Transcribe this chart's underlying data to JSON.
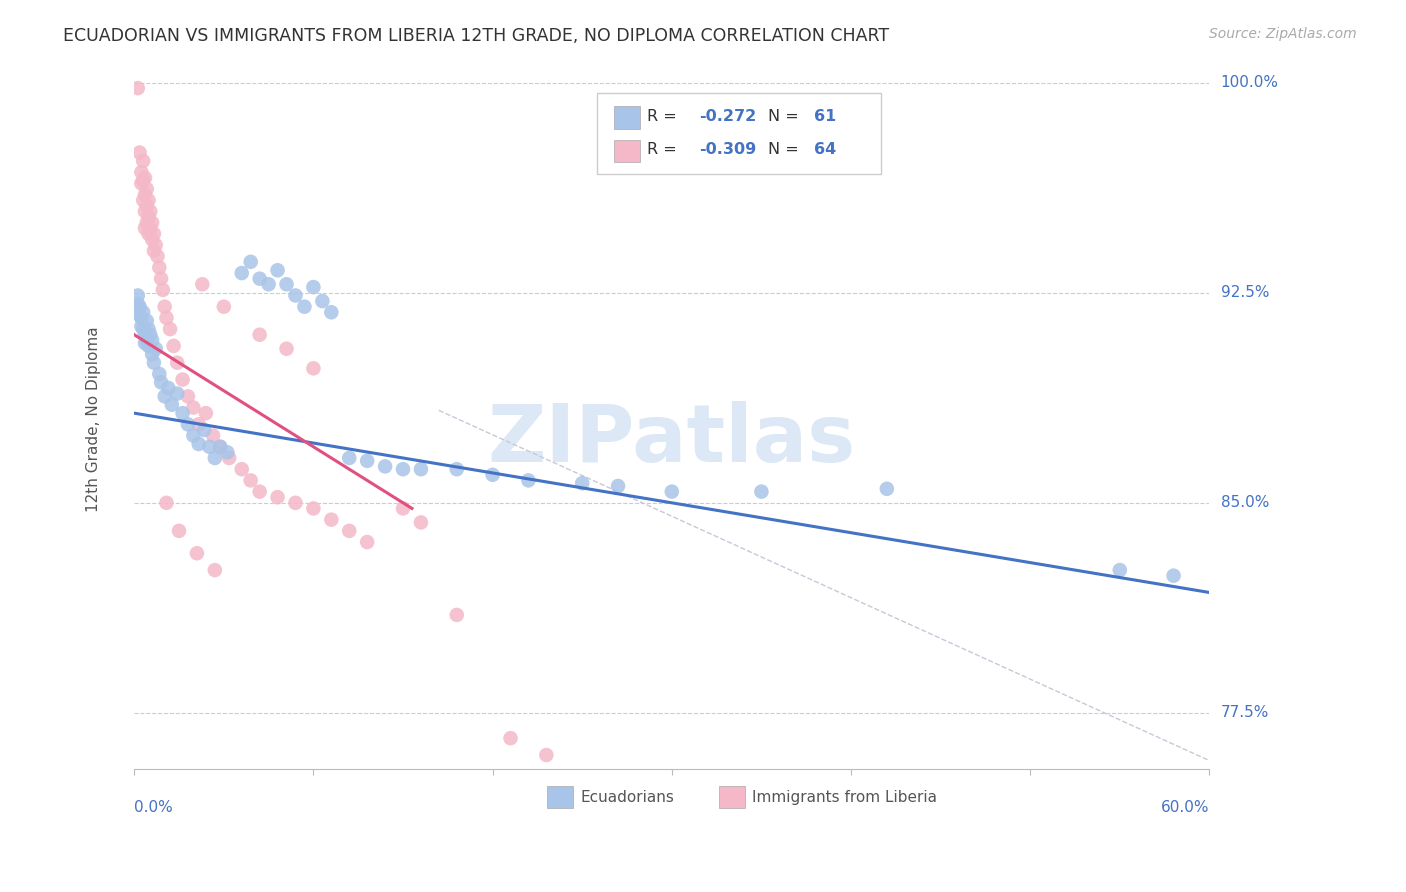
{
  "title": "ECUADORIAN VS IMMIGRANTS FROM LIBERIA 12TH GRADE, NO DIPLOMA CORRELATION CHART",
  "source": "Source: ZipAtlas.com",
  "ylabel": "12th Grade, No Diploma",
  "xmin": 0.0,
  "xmax": 0.6,
  "ymin": 0.755,
  "ymax": 1.005,
  "blue_color": "#a8c4e8",
  "pink_color": "#f4b8c8",
  "blue_line_color": "#4472c4",
  "pink_line_color": "#e05080",
  "blue_scatter": [
    [
      0.002,
      0.924
    ],
    [
      0.002,
      0.921
    ],
    [
      0.002,
      0.919
    ],
    [
      0.003,
      0.92
    ],
    [
      0.003,
      0.917
    ],
    [
      0.004,
      0.916
    ],
    [
      0.004,
      0.913
    ],
    [
      0.005,
      0.918
    ],
    [
      0.005,
      0.912
    ],
    [
      0.006,
      0.91
    ],
    [
      0.006,
      0.907
    ],
    [
      0.007,
      0.915
    ],
    [
      0.007,
      0.908
    ],
    [
      0.008,
      0.912
    ],
    [
      0.008,
      0.906
    ],
    [
      0.009,
      0.91
    ],
    [
      0.01,
      0.908
    ],
    [
      0.01,
      0.903
    ],
    [
      0.011,
      0.9
    ],
    [
      0.012,
      0.905
    ],
    [
      0.014,
      0.896
    ],
    [
      0.015,
      0.893
    ],
    [
      0.017,
      0.888
    ],
    [
      0.019,
      0.891
    ],
    [
      0.021,
      0.885
    ],
    [
      0.024,
      0.889
    ],
    [
      0.027,
      0.882
    ],
    [
      0.03,
      0.878
    ],
    [
      0.033,
      0.874
    ],
    [
      0.036,
      0.871
    ],
    [
      0.039,
      0.876
    ],
    [
      0.042,
      0.87
    ],
    [
      0.045,
      0.866
    ],
    [
      0.048,
      0.87
    ],
    [
      0.052,
      0.868
    ],
    [
      0.06,
      0.932
    ],
    [
      0.065,
      0.936
    ],
    [
      0.07,
      0.93
    ],
    [
      0.075,
      0.928
    ],
    [
      0.08,
      0.933
    ],
    [
      0.085,
      0.928
    ],
    [
      0.09,
      0.924
    ],
    [
      0.095,
      0.92
    ],
    [
      0.1,
      0.927
    ],
    [
      0.105,
      0.922
    ],
    [
      0.11,
      0.918
    ],
    [
      0.12,
      0.866
    ],
    [
      0.13,
      0.865
    ],
    [
      0.14,
      0.863
    ],
    [
      0.15,
      0.862
    ],
    [
      0.16,
      0.862
    ],
    [
      0.18,
      0.862
    ],
    [
      0.2,
      0.86
    ],
    [
      0.22,
      0.858
    ],
    [
      0.25,
      0.857
    ],
    [
      0.27,
      0.856
    ],
    [
      0.3,
      0.854
    ],
    [
      0.35,
      0.854
    ],
    [
      0.42,
      0.855
    ],
    [
      0.55,
      0.826
    ],
    [
      0.58,
      0.824
    ]
  ],
  "pink_scatter": [
    [
      0.002,
      0.998
    ],
    [
      0.003,
      0.975
    ],
    [
      0.004,
      0.968
    ],
    [
      0.004,
      0.964
    ],
    [
      0.005,
      0.972
    ],
    [
      0.005,
      0.965
    ],
    [
      0.005,
      0.958
    ],
    [
      0.006,
      0.966
    ],
    [
      0.006,
      0.96
    ],
    [
      0.006,
      0.954
    ],
    [
      0.006,
      0.948
    ],
    [
      0.007,
      0.962
    ],
    [
      0.007,
      0.956
    ],
    [
      0.007,
      0.95
    ],
    [
      0.008,
      0.958
    ],
    [
      0.008,
      0.952
    ],
    [
      0.008,
      0.946
    ],
    [
      0.009,
      0.954
    ],
    [
      0.009,
      0.948
    ],
    [
      0.01,
      0.95
    ],
    [
      0.01,
      0.944
    ],
    [
      0.011,
      0.946
    ],
    [
      0.011,
      0.94
    ],
    [
      0.012,
      0.942
    ],
    [
      0.013,
      0.938
    ],
    [
      0.014,
      0.934
    ],
    [
      0.015,
      0.93
    ],
    [
      0.016,
      0.926
    ],
    [
      0.017,
      0.92
    ],
    [
      0.018,
      0.916
    ],
    [
      0.02,
      0.912
    ],
    [
      0.022,
      0.906
    ],
    [
      0.024,
      0.9
    ],
    [
      0.027,
      0.894
    ],
    [
      0.03,
      0.888
    ],
    [
      0.033,
      0.884
    ],
    [
      0.036,
      0.878
    ],
    [
      0.04,
      0.882
    ],
    [
      0.044,
      0.874
    ],
    [
      0.048,
      0.87
    ],
    [
      0.053,
      0.866
    ],
    [
      0.06,
      0.862
    ],
    [
      0.065,
      0.858
    ],
    [
      0.07,
      0.854
    ],
    [
      0.08,
      0.852
    ],
    [
      0.09,
      0.85
    ],
    [
      0.1,
      0.848
    ],
    [
      0.11,
      0.844
    ],
    [
      0.12,
      0.84
    ],
    [
      0.13,
      0.836
    ],
    [
      0.038,
      0.928
    ],
    [
      0.05,
      0.92
    ],
    [
      0.07,
      0.91
    ],
    [
      0.085,
      0.905
    ],
    [
      0.1,
      0.898
    ],
    [
      0.15,
      0.848
    ],
    [
      0.16,
      0.843
    ],
    [
      0.18,
      0.81
    ],
    [
      0.21,
      0.766
    ],
    [
      0.23,
      0.76
    ],
    [
      0.018,
      0.85
    ],
    [
      0.025,
      0.84
    ],
    [
      0.035,
      0.832
    ],
    [
      0.045,
      0.826
    ]
  ],
  "blue_line_x": [
    0.0,
    0.6
  ],
  "blue_line_y": [
    0.882,
    0.818
  ],
  "pink_line_x": [
    0.0,
    0.155
  ],
  "pink_line_y": [
    0.91,
    0.848
  ],
  "diag_line_x": [
    0.17,
    0.6
  ],
  "diag_line_y": [
    0.883,
    0.758
  ],
  "background_color": "#ffffff",
  "grid_color": "#cccccc",
  "title_color": "#333333",
  "axis_color": "#4472c4",
  "watermark_text": "ZIPatlas",
  "watermark_color": "#dce8f5",
  "ytick_vals": [
    0.775,
    0.85,
    0.925,
    1.0
  ],
  "ytick_labels": [
    "77.5%",
    "85.0%",
    "92.5%",
    "100.0%"
  ]
}
